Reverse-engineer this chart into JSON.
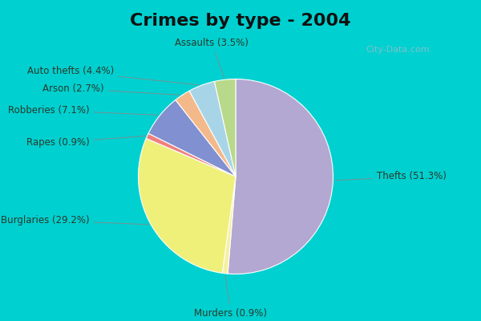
{
  "title": "Crimes by type - 2004",
  "title_fontsize": 16,
  "title_fontweight": "bold",
  "slices": [
    {
      "label": "Thefts",
      "pct": 51.3,
      "color": "#b3a8d1"
    },
    {
      "label": "Murders",
      "pct": 0.9,
      "color": "#f5f0a0"
    },
    {
      "label": "Burglaries",
      "pct": 29.2,
      "color": "#eef07a"
    },
    {
      "label": "Rapes",
      "pct": 0.9,
      "color": "#f08080"
    },
    {
      "label": "Robberies",
      "pct": 7.1,
      "color": "#8090d0"
    },
    {
      "label": "Arson",
      "pct": 2.7,
      "color": "#f4b98a"
    },
    {
      "label": "Auto thefts",
      "pct": 4.4,
      "color": "#a8d4e8"
    },
    {
      "label": "Assaults",
      "pct": 3.5,
      "color": "#b8d98a"
    }
  ],
  "bg_outer": "#00d0d0",
  "bg_inner_top": "#d0eee0",
  "bg_inner_bottom": "#e8f5e8",
  "wedge_edge_color": "#ffffff",
  "label_fontsize": 8.5,
  "label_color": "#2a3a2a",
  "watermark": "City-Data.com"
}
